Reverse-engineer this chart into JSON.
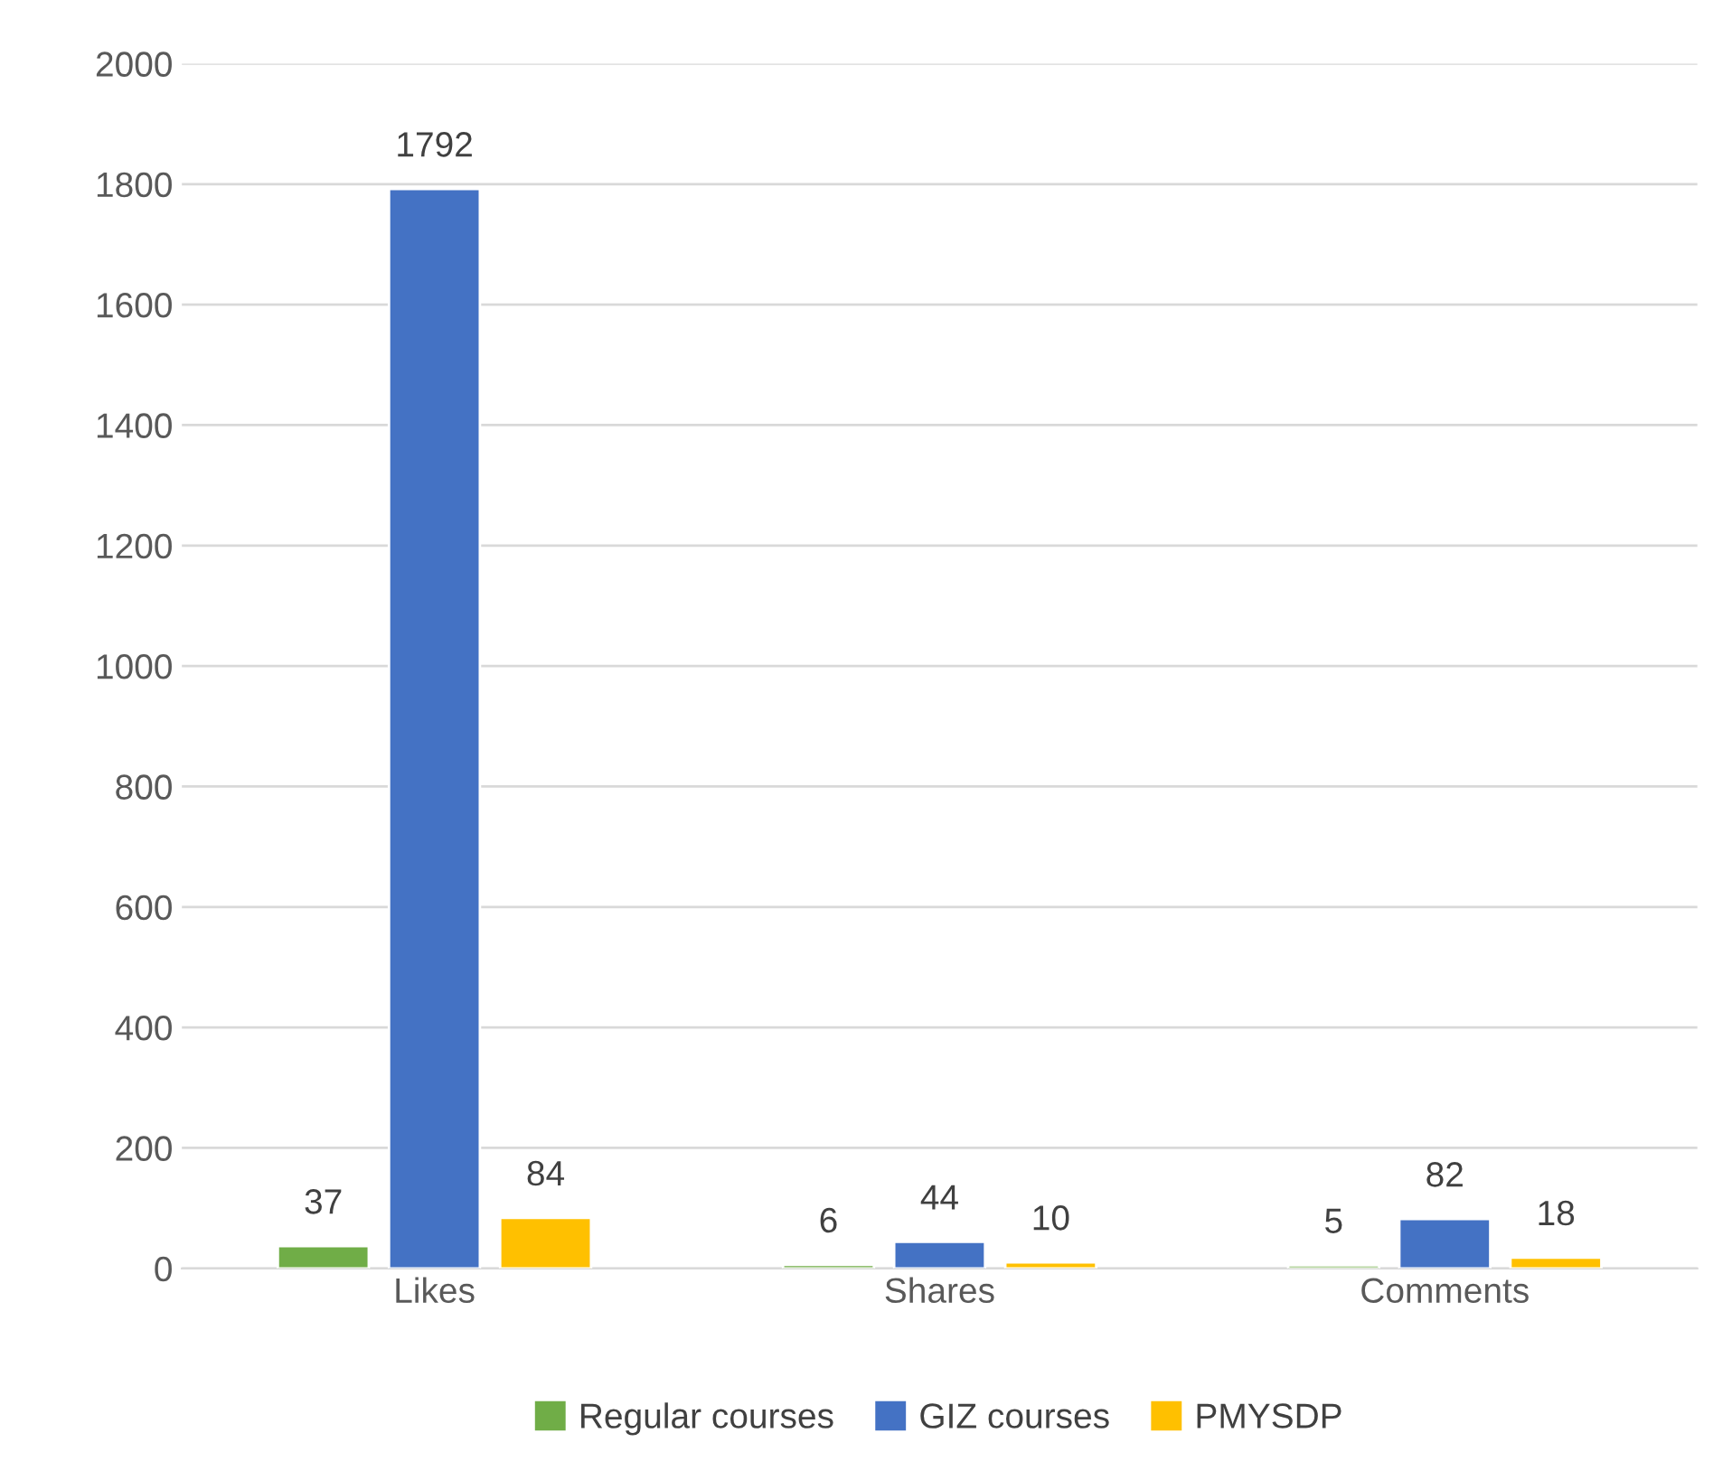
{
  "chart_data": {
    "type": "bar",
    "categories": [
      "Likes",
      "Shares",
      "Comments"
    ],
    "series": [
      {
        "name": "Regular courses",
        "color": "#70ad47",
        "values": [
          37,
          6,
          5
        ]
      },
      {
        "name": "GIZ courses",
        "color": "#4472c4",
        "values": [
          1792,
          44,
          82
        ]
      },
      {
        "name": "PMYSDP",
        "color": "#ffc000",
        "values": [
          84,
          10,
          18
        ]
      }
    ],
    "ylim": [
      0,
      2000
    ],
    "yticks": [
      0,
      200,
      400,
      600,
      800,
      1000,
      1200,
      1400,
      1600,
      1800,
      2000
    ],
    "grid": "y",
    "legend": "bottom",
    "data_labels": true
  }
}
